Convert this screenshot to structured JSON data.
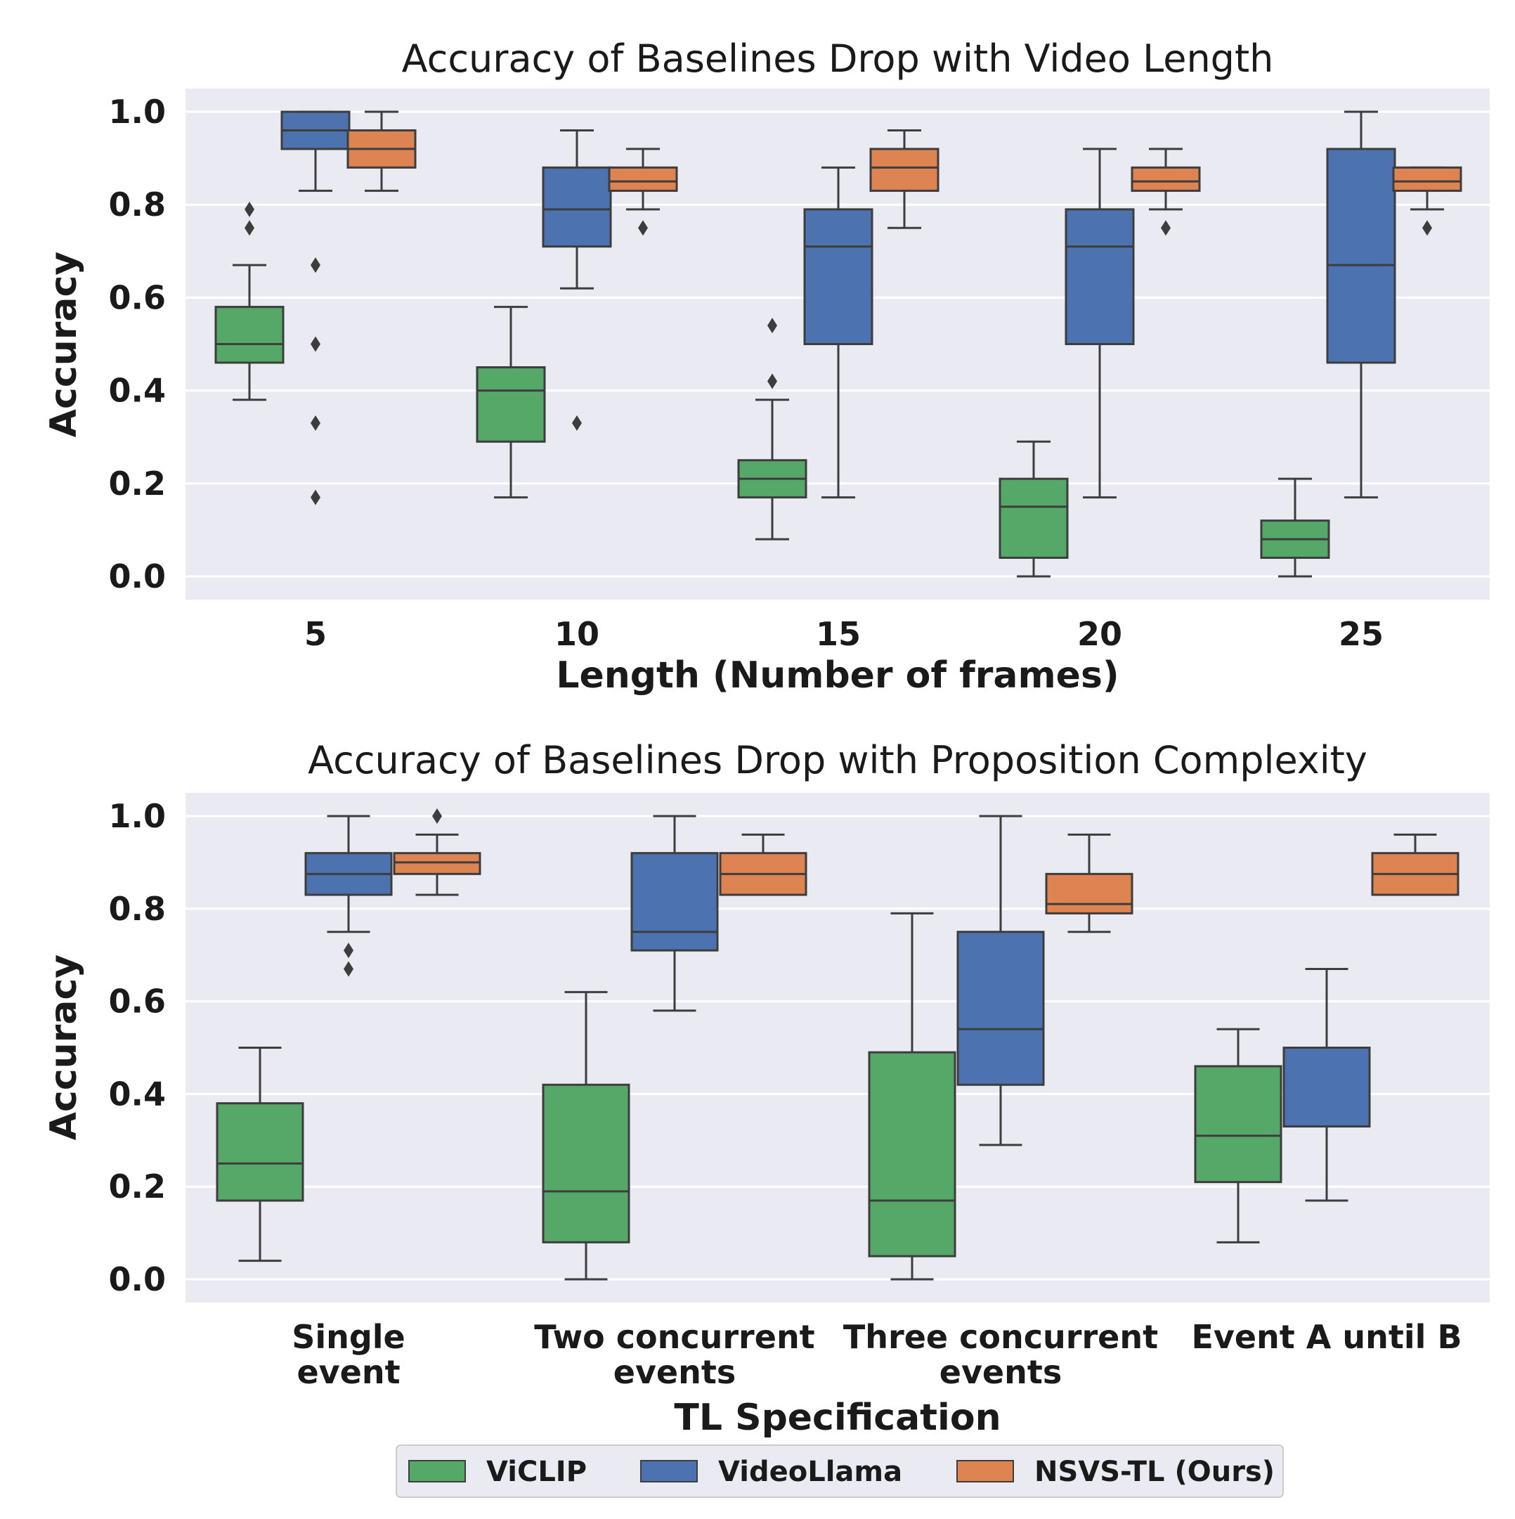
{
  "colors": {
    "plot_bg": "#eaeaf2",
    "grid": "#ffffff",
    "line": "#3d3d3d",
    "ViCLIP": "#55a868",
    "VideoLlama": "#4c72b0",
    "NSVS-TL (Ours)": "#dd8452"
  },
  "legend": [
    "ViCLIP",
    "VideoLlama",
    "NSVS-TL (Ours)"
  ],
  "chart_data": [
    {
      "type": "box",
      "title": "Accuracy of Baselines Drop with Video Length",
      "xlabel": "Length (Number of frames)",
      "ylabel": "Accuracy",
      "ylim": [
        -0.05,
        1.05
      ],
      "yticks": [
        "0.0",
        "0.2",
        "0.4",
        "0.6",
        "0.8",
        "1.0"
      ],
      "grid": true,
      "categories": [
        {
          "label": [
            "5"
          ]
        },
        {
          "label": [
            "10"
          ]
        },
        {
          "label": [
            "15"
          ]
        },
        {
          "label": [
            "20"
          ]
        },
        {
          "label": [
            "25"
          ]
        }
      ],
      "series": [
        {
          "name": "ViCLIP",
          "boxes": [
            {
              "whislo": 0.38,
              "q1": 0.46,
              "med": 0.5,
              "q3": 0.58,
              "whishi": 0.67,
              "fliers": [
                0.75,
                0.79
              ]
            },
            {
              "whislo": 0.17,
              "q1": 0.29,
              "med": 0.4,
              "q3": 0.45,
              "whishi": 0.58,
              "fliers": []
            },
            {
              "whislo": 0.08,
              "q1": 0.17,
              "med": 0.21,
              "q3": 0.25,
              "whishi": 0.38,
              "fliers": [
                0.42,
                0.54
              ]
            },
            {
              "whislo": 0.0,
              "q1": 0.04,
              "med": 0.15,
              "q3": 0.21,
              "whishi": 0.29,
              "fliers": []
            },
            {
              "whislo": 0.0,
              "q1": 0.04,
              "med": 0.08,
              "q3": 0.12,
              "whishi": 0.21,
              "fliers": []
            }
          ]
        },
        {
          "name": "VideoLlama",
          "boxes": [
            {
              "whislo": 0.83,
              "q1": 0.92,
              "med": 0.96,
              "q3": 1.0,
              "whishi": 1.0,
              "fliers": [
                0.17,
                0.33,
                0.5,
                0.67
              ]
            },
            {
              "whislo": 0.62,
              "q1": 0.71,
              "med": 0.79,
              "q3": 0.88,
              "whishi": 0.96,
              "fliers": [
                0.33
              ]
            },
            {
              "whislo": 0.17,
              "q1": 0.5,
              "med": 0.71,
              "q3": 0.79,
              "whishi": 0.88,
              "fliers": []
            },
            {
              "whislo": 0.17,
              "q1": 0.5,
              "med": 0.71,
              "q3": 0.79,
              "whishi": 0.92,
              "fliers": []
            },
            {
              "whislo": 0.17,
              "q1": 0.46,
              "med": 0.67,
              "q3": 0.92,
              "whishi": 1.0,
              "fliers": []
            }
          ]
        },
        {
          "name": "NSVS-TL (Ours)",
          "boxes": [
            {
              "whislo": 0.83,
              "q1": 0.88,
              "med": 0.92,
              "q3": 0.96,
              "whishi": 1.0,
              "fliers": []
            },
            {
              "whislo": 0.79,
              "q1": 0.83,
              "med": 0.85,
              "q3": 0.88,
              "whishi": 0.92,
              "fliers": [
                0.75
              ]
            },
            {
              "whislo": 0.75,
              "q1": 0.83,
              "med": 0.88,
              "q3": 0.92,
              "whishi": 0.96,
              "fliers": []
            },
            {
              "whislo": 0.79,
              "q1": 0.83,
              "med": 0.85,
              "q3": 0.88,
              "whishi": 0.92,
              "fliers": [
                0.75
              ]
            },
            {
              "whislo": 0.79,
              "q1": 0.83,
              "med": 0.85,
              "q3": 0.88,
              "whishi": 0.88,
              "fliers": [
                0.75
              ]
            }
          ]
        }
      ]
    },
    {
      "type": "box",
      "title": "Accuracy of Baselines Drop with Proposition Complexity",
      "xlabel": "TL Specification",
      "ylabel": "Accuracy",
      "ylim": [
        -0.05,
        1.05
      ],
      "yticks": [
        "0.0",
        "0.2",
        "0.4",
        "0.6",
        "0.8",
        "1.0"
      ],
      "grid": true,
      "categories": [
        {
          "label": [
            "Single",
            "event"
          ]
        },
        {
          "label": [
            "Two concurrent",
            "events"
          ]
        },
        {
          "label": [
            "Three concurrent",
            "events"
          ]
        },
        {
          "label": [
            "Event A until B"
          ]
        }
      ],
      "series": [
        {
          "name": "ViCLIP",
          "boxes": [
            {
              "whislo": 0.04,
              "q1": 0.17,
              "med": 0.25,
              "q3": 0.38,
              "whishi": 0.5,
              "fliers": []
            },
            {
              "whislo": 0.0,
              "q1": 0.08,
              "med": 0.19,
              "q3": 0.42,
              "whishi": 0.62,
              "fliers": []
            },
            {
              "whislo": 0.0,
              "q1": 0.05,
              "med": 0.17,
              "q3": 0.49,
              "whishi": 0.79,
              "fliers": []
            },
            {
              "whislo": 0.08,
              "q1": 0.21,
              "med": 0.31,
              "q3": 0.46,
              "whishi": 0.54,
              "fliers": []
            }
          ]
        },
        {
          "name": "VideoLlama",
          "boxes": [
            {
              "whislo": 0.75,
              "q1": 0.83,
              "med": 0.875,
              "q3": 0.92,
              "whishi": 1.0,
              "fliers": [
                0.67,
                0.71
              ]
            },
            {
              "whislo": 0.58,
              "q1": 0.71,
              "med": 0.75,
              "q3": 0.92,
              "whishi": 1.0,
              "fliers": []
            },
            {
              "whislo": 0.29,
              "q1": 0.42,
              "med": 0.54,
              "q3": 0.75,
              "whishi": 1.0,
              "fliers": []
            },
            {
              "whislo": 0.17,
              "q1": 0.33,
              "med": 0.5,
              "q3": 0.5,
              "whishi": 0.67,
              "fliers": []
            }
          ]
        },
        {
          "name": "NSVS-TL (Ours)",
          "boxes": [
            {
              "whislo": 0.83,
              "q1": 0.875,
              "med": 0.9,
              "q3": 0.92,
              "whishi": 0.96,
              "fliers": [
                1.0
              ]
            },
            {
              "whislo": 0.83,
              "q1": 0.83,
              "med": 0.875,
              "q3": 0.92,
              "whishi": 0.96,
              "fliers": []
            },
            {
              "whislo": 0.75,
              "q1": 0.79,
              "med": 0.81,
              "q3": 0.875,
              "whishi": 0.96,
              "fliers": []
            },
            {
              "whislo": 0.83,
              "q1": 0.83,
              "med": 0.875,
              "q3": 0.92,
              "whishi": 0.96,
              "fliers": []
            }
          ]
        }
      ]
    }
  ]
}
